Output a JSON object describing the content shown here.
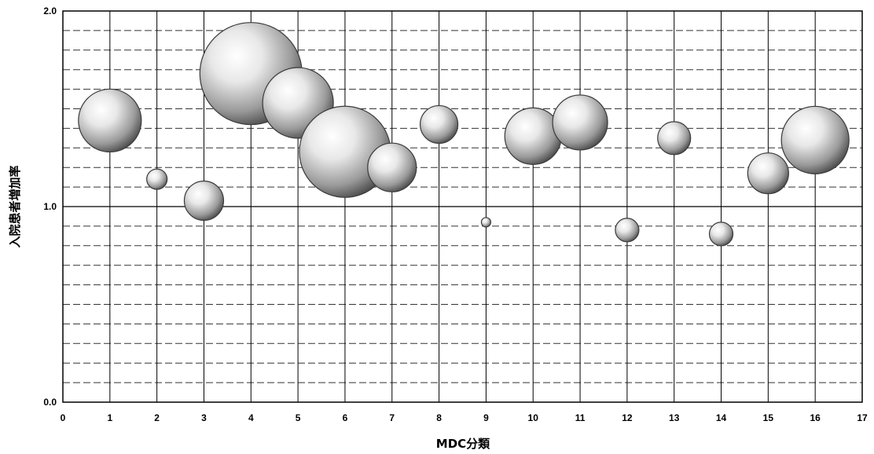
{
  "chart_data": {
    "type": "scatter",
    "xlabel": "MDC分類",
    "ylabel": "入院患者増加率",
    "xlim": [
      0,
      17
    ],
    "ylim": [
      0.0,
      2.0
    ],
    "x_ticks": [
      "0",
      "1",
      "2",
      "3",
      "4",
      "5",
      "6",
      "7",
      "8",
      "9",
      "10",
      "11",
      "12",
      "13",
      "14",
      "15",
      "16",
      "17"
    ],
    "y_ticks": [
      "0.0",
      "1.0",
      "2.0"
    ],
    "grid": true,
    "legend": "none",
    "bubble_color": "#7a7a7a",
    "points": [
      {
        "x": 1,
        "y": 1.44,
        "size": 40
      },
      {
        "x": 2,
        "y": 1.14,
        "size": 13
      },
      {
        "x": 3,
        "y": 1.03,
        "size": 25
      },
      {
        "x": 4,
        "y": 1.68,
        "size": 65
      },
      {
        "x": 5,
        "y": 1.53,
        "size": 45
      },
      {
        "x": 6,
        "y": 1.28,
        "size": 58
      },
      {
        "x": 7,
        "y": 1.2,
        "size": 31
      },
      {
        "x": 8,
        "y": 1.42,
        "size": 24
      },
      {
        "x": 9,
        "y": 0.92,
        "size": 6
      },
      {
        "x": 10,
        "y": 1.36,
        "size": 36
      },
      {
        "x": 11,
        "y": 1.43,
        "size": 35
      },
      {
        "x": 12,
        "y": 0.88,
        "size": 15
      },
      {
        "x": 13,
        "y": 1.35,
        "size": 21
      },
      {
        "x": 14,
        "y": 0.86,
        "size": 15
      },
      {
        "x": 15,
        "y": 1.17,
        "size": 26
      },
      {
        "x": 16,
        "y": 1.34,
        "size": 43
      }
    ]
  }
}
